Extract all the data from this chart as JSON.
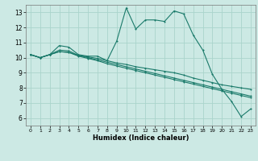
{
  "xlabel": "Humidex (Indice chaleur)",
  "xlim": [
    -0.5,
    23.5
  ],
  "ylim": [
    5.5,
    13.5
  ],
  "xticks": [
    0,
    1,
    2,
    3,
    4,
    5,
    6,
    7,
    8,
    9,
    10,
    11,
    12,
    13,
    14,
    15,
    16,
    17,
    18,
    19,
    20,
    21,
    22,
    23
  ],
  "yticks": [
    6,
    7,
    8,
    9,
    10,
    11,
    12,
    13
  ],
  "bg_color": "#cce9e4",
  "grid_color": "#aad4cc",
  "line_color": "#1a7a6a",
  "line1_y": [
    10.2,
    10.0,
    10.2,
    10.8,
    10.7,
    10.2,
    10.1,
    10.1,
    9.8,
    11.1,
    13.3,
    11.9,
    12.5,
    12.5,
    12.4,
    13.1,
    12.9,
    11.5,
    10.5,
    8.9,
    7.9,
    7.1,
    6.1,
    6.6
  ],
  "line2_y": [
    10.2,
    10.0,
    10.2,
    10.4,
    10.35,
    10.15,
    10.05,
    9.95,
    9.8,
    9.65,
    9.55,
    9.4,
    9.3,
    9.2,
    9.1,
    9.0,
    8.85,
    8.65,
    8.5,
    8.35,
    8.2,
    8.1,
    8.0,
    7.9
  ],
  "line3_y": [
    10.2,
    10.0,
    10.2,
    10.4,
    10.35,
    10.1,
    9.95,
    9.8,
    9.6,
    9.45,
    9.3,
    9.15,
    9.0,
    8.85,
    8.7,
    8.55,
    8.4,
    8.25,
    8.1,
    7.95,
    7.8,
    7.65,
    7.5,
    7.35
  ],
  "line4_y": [
    10.2,
    10.0,
    10.2,
    10.5,
    10.45,
    10.15,
    10.0,
    9.85,
    9.7,
    9.55,
    9.4,
    9.25,
    9.1,
    8.95,
    8.8,
    8.65,
    8.5,
    8.35,
    8.2,
    8.05,
    7.9,
    7.75,
    7.6,
    7.45
  ]
}
